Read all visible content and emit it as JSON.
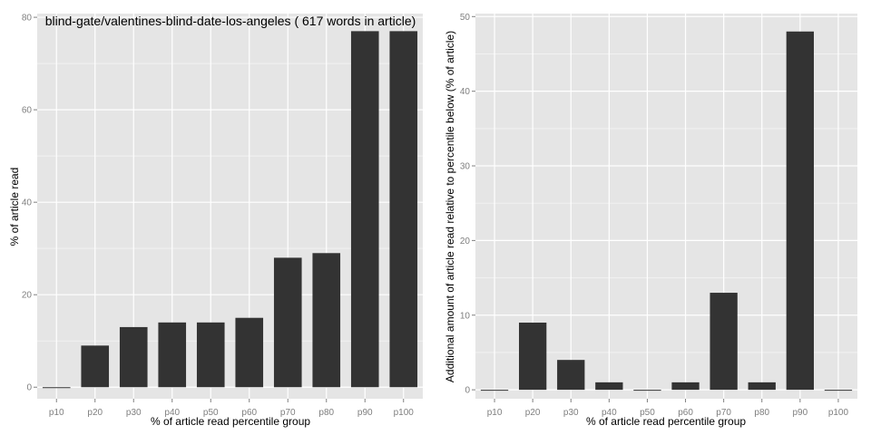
{
  "chart_data": [
    {
      "type": "bar",
      "title": "blind-gate/valentines-blind-date-los-angeles ( 617 words in article)",
      "xlabel": "% of article read percentile group",
      "ylabel": "% of article read",
      "categories": [
        "p10",
        "p20",
        "p30",
        "p40",
        "p50",
        "p60",
        "p70",
        "p80",
        "p90",
        "p100"
      ],
      "values": [
        0,
        9,
        13,
        14,
        14,
        15,
        28,
        29,
        77,
        77
      ],
      "ylim": [
        -2.5,
        80.8
      ],
      "yticks": [
        0,
        20,
        40,
        60,
        80
      ],
      "grid": true,
      "colors": {
        "panel": "#e5e5e5",
        "grid_major": "#ffffff",
        "grid_minor": "#f2f2f2",
        "bar": "#333333"
      }
    },
    {
      "type": "bar",
      "title": "",
      "xlabel": "% of article read percentile group",
      "ylabel": "Additional amount of article read relative to percentile below (% of article)",
      "categories": [
        "p10",
        "p20",
        "p30",
        "p40",
        "p50",
        "p60",
        "p70",
        "p80",
        "p90",
        "p100"
      ],
      "values": [
        0,
        9,
        4,
        1,
        0,
        1,
        13,
        1,
        48,
        0
      ],
      "ylim": [
        -1.2,
        50.4
      ],
      "yticks": [
        0,
        10,
        20,
        30,
        40,
        50
      ],
      "grid": true,
      "colors": {
        "panel": "#e5e5e5",
        "grid_major": "#ffffff",
        "grid_minor": "#f2f2f2",
        "bar": "#333333"
      }
    }
  ]
}
